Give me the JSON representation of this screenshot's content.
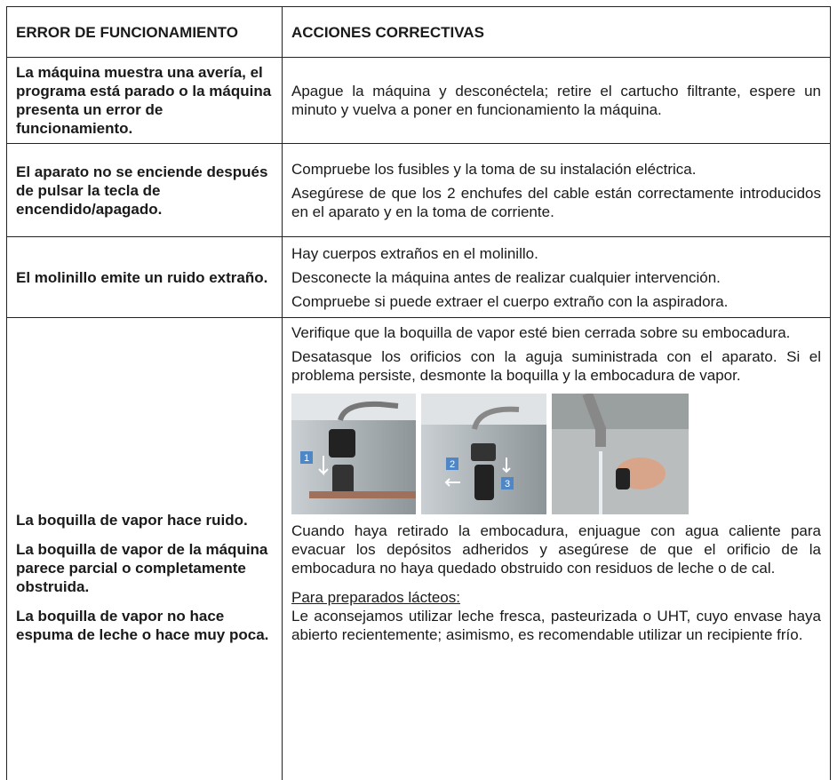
{
  "table": {
    "header": [
      "ERROR DE FUNCIONAMIENTO",
      "ACCIONES CORRECTIVAS"
    ],
    "rows": [
      {
        "problem": [
          "La máquina muestra una avería, el programa está parado o la máquina presenta un error de funcionamiento."
        ],
        "actions": [
          "Apague la máquina y desconéctela; retire el cartucho filtrante, espere un minuto y vuelva a poner en funcionamiento la máquina."
        ]
      },
      {
        "problem": [
          "El aparato no se enciende después de pulsar la tecla de encendido/apagado."
        ],
        "actions": [
          "Compruebe los fusibles y la toma de su instalación eléctrica.",
          "Asegúrese de que los 2 enchufes del cable están correctamente introducidos en el aparato y en la toma de corriente."
        ]
      },
      {
        "problem": [
          "El molinillo emite un ruido extraño."
        ],
        "actions": [
          "Hay cuerpos extraños en el molinillo.",
          "Desconecte la máquina antes de realizar cualquier intervención.",
          "Compruebe si puede extraer el cuerpo extraño con la aspiradora."
        ]
      },
      {
        "problem": [
          "La boquilla de vapor hace ruido.",
          "La boquilla de vapor de la máquina parece parcial o completamente obstruida.",
          "La boquilla de vapor no hace espuma de leche o hace muy poca."
        ],
        "actions": [
          "Verifique que la boquilla de vapor esté bien cerrada sobre su embocadura.",
          "Desatasque los orificios con la aguja suministrada con el aparato. Si el problema persiste, desmonte la boquilla y la embocadura de vapor."
        ],
        "photo_labels": [
          [
            "1"
          ],
          [
            "2",
            "3"
          ]
        ],
        "actions_after": [
          "Cuando haya retirado la embocadura, enjuague con agua caliente para evacuar los depósitos adheridos y asegúrese de que el orificio de la embocadura no haya quedado obstruido con residuos de leche o de cal."
        ],
        "subheading": "Para preparados lácteos:",
        "note": "Le aconsejamos utilizar leche fresca, pasteurizada o UHT, cuyo envase haya abierto recientemente; asimismo, es recomendable utilizar un recipiente frío."
      }
    ]
  }
}
